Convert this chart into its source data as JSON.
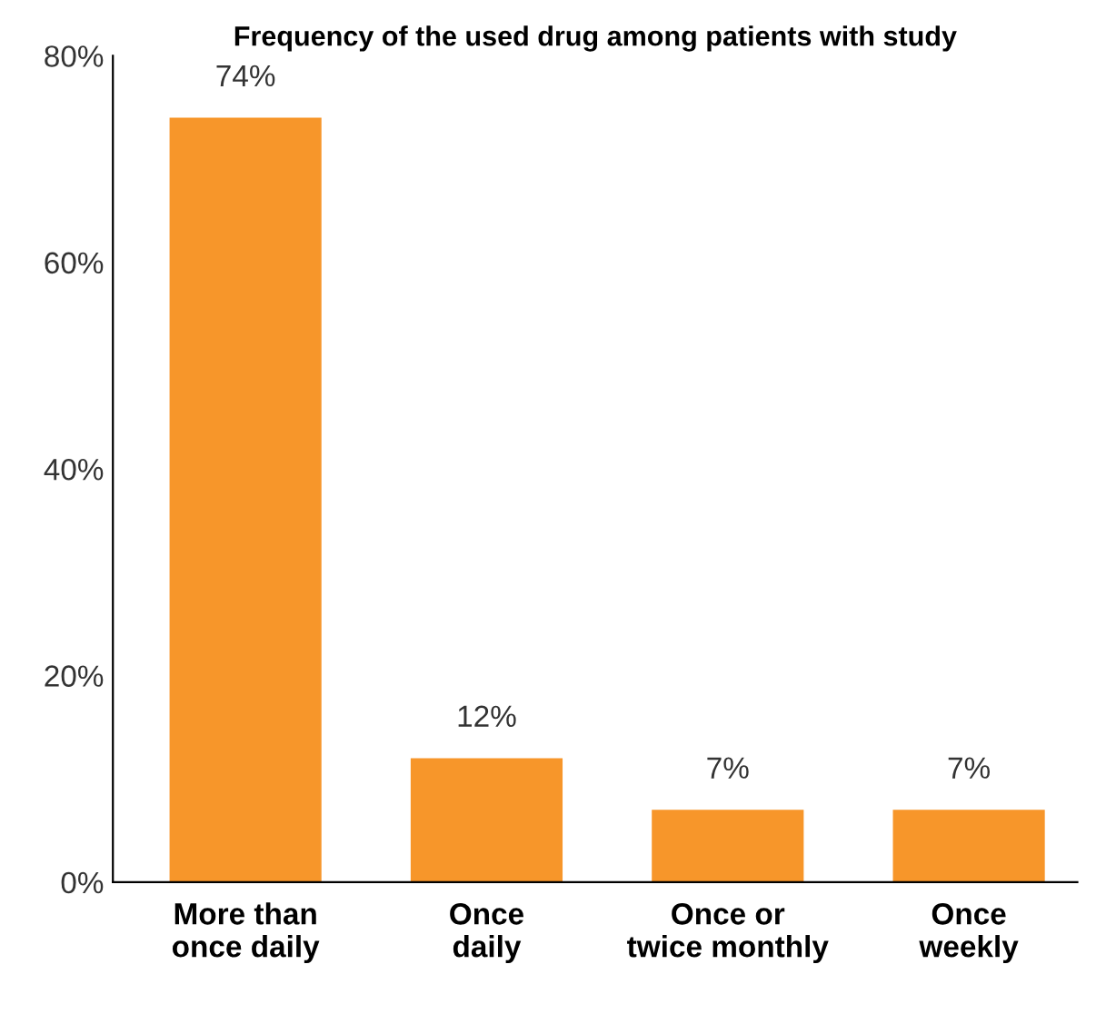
{
  "chart_data": {
    "type": "bar",
    "title": "Frequency of the used drug among patients with study",
    "categories": [
      "More than once daily",
      "Once daily",
      "Once or twice monthly",
      "Once weekly"
    ],
    "values": [
      74,
      12,
      7,
      7
    ],
    "color": "#f7962a",
    "data_labels": true,
    "value_labels": [
      "74%",
      "12%",
      "7%",
      "7%"
    ],
    "ylim": [
      0,
      80
    ],
    "yticks": [
      {
        "value": 0,
        "label": "0%"
      },
      {
        "value": 20,
        "label": "20%"
      },
      {
        "value": 40,
        "label": "40%"
      },
      {
        "value": 60,
        "label": "60%"
      },
      {
        "value": 80,
        "label": "80%"
      }
    ],
    "grid": false,
    "legend": false
  }
}
